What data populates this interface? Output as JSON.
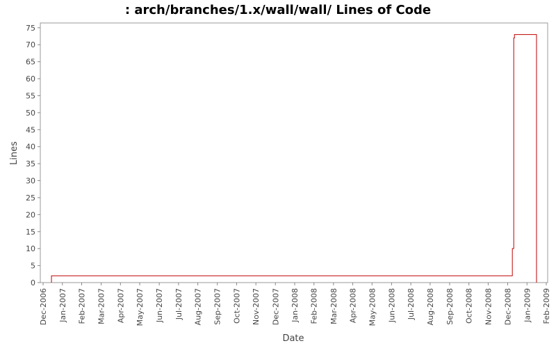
{
  "chart_data": {
    "type": "line",
    "title": ": arch/branches/1.x/wall/wall/ Lines of Code",
    "x_label": "Date",
    "y_label": "Lines",
    "x": [
      2006.953,
      2006.953,
      2008.937,
      2008.937,
      2008.943,
      2008.943,
      2008.946,
      2008.946,
      2009.041,
      2009.041
    ],
    "values": [
      0,
      2,
      2,
      10,
      10,
      72,
      72,
      73,
      73,
      0
    ],
    "color": "#c00000",
    "xlim": [
      2006.905,
      2009.089
    ],
    "xticks": [
      {
        "value": 2006.917,
        "label": "Dec-2006"
      },
      {
        "value": 2007.0,
        "label": "Jan-2007"
      },
      {
        "value": 2007.083,
        "label": "Feb-2007"
      },
      {
        "value": 2007.167,
        "label": "Mar-2007"
      },
      {
        "value": 2007.25,
        "label": "Apr-2007"
      },
      {
        "value": 2007.333,
        "label": "May-2007"
      },
      {
        "value": 2007.417,
        "label": "Jun-2007"
      },
      {
        "value": 2007.5,
        "label": "Jul-2007"
      },
      {
        "value": 2007.583,
        "label": "Aug-2007"
      },
      {
        "value": 2007.667,
        "label": "Sep-2007"
      },
      {
        "value": 2007.75,
        "label": "Oct-2007"
      },
      {
        "value": 2007.833,
        "label": "Nov-2007"
      },
      {
        "value": 2007.917,
        "label": "Dec-2007"
      },
      {
        "value": 2008.0,
        "label": "Jan-2008"
      },
      {
        "value": 2008.083,
        "label": "Feb-2008"
      },
      {
        "value": 2008.167,
        "label": "Mar-2008"
      },
      {
        "value": 2008.25,
        "label": "Apr-2008"
      },
      {
        "value": 2008.333,
        "label": "May-2008"
      },
      {
        "value": 2008.417,
        "label": "Jun-2008"
      },
      {
        "value": 2008.5,
        "label": "Jul-2008"
      },
      {
        "value": 2008.583,
        "label": "Aug-2008"
      },
      {
        "value": 2008.667,
        "label": "Sep-2008"
      },
      {
        "value": 2008.75,
        "label": "Oct-2008"
      },
      {
        "value": 2008.833,
        "label": "Nov-2008"
      },
      {
        "value": 2008.917,
        "label": "Dec-2008"
      },
      {
        "value": 2009.0,
        "label": "Jan-2009"
      },
      {
        "value": 2009.083,
        "label": "Feb-2009"
      }
    ],
    "ylim": [
      0,
      76.4
    ],
    "yticks": [
      0,
      5,
      10,
      15,
      20,
      25,
      30,
      35,
      40,
      45,
      50,
      55,
      60,
      65,
      70,
      75
    ],
    "grid": false
  }
}
